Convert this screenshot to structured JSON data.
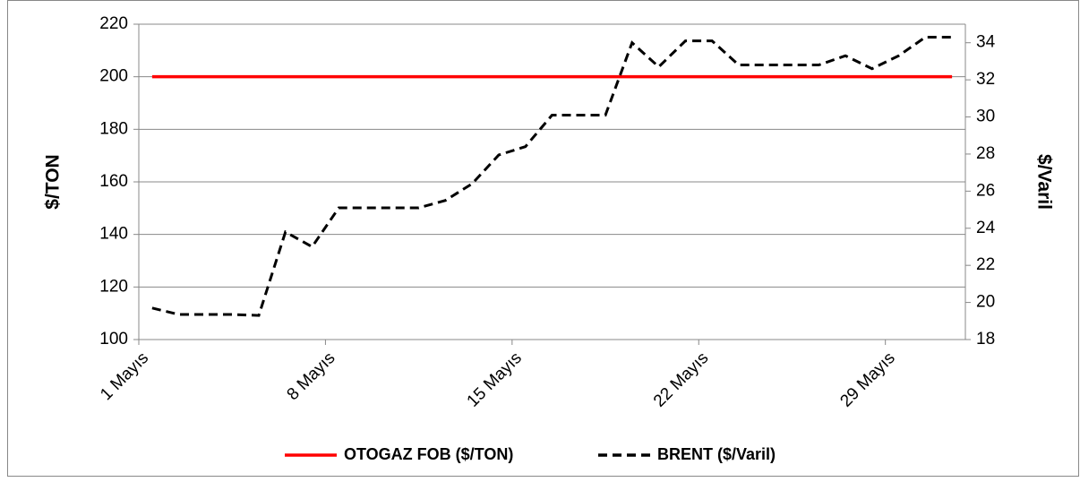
{
  "chart_data": {
    "type": "line",
    "categories": [
      "1 Mayıs",
      null,
      null,
      null,
      null,
      null,
      null,
      "8 Mayıs",
      null,
      null,
      null,
      null,
      null,
      null,
      "15 Mayıs",
      null,
      null,
      null,
      null,
      null,
      null,
      "22 Mayıs",
      null,
      null,
      null,
      null,
      null,
      null,
      "29 Mayıs",
      null,
      null
    ],
    "series": [
      {
        "name": "OTOGAZ FOB ($/TON)",
        "color": "#ff0000",
        "dash": false,
        "values": [
          200,
          200,
          200,
          200,
          200,
          200,
          200,
          200,
          200,
          200,
          200,
          200,
          200,
          200,
          200,
          200,
          200,
          200,
          200,
          200,
          200,
          200,
          200,
          200,
          200,
          200,
          200,
          200,
          200,
          200,
          200
        ]
      },
      {
        "name": "BRENT ($/Varil)",
        "color": "#000000",
        "dash": true,
        "axis": "y2",
        "values": [
          19.7,
          19.35,
          19.35,
          19.35,
          19.3,
          23.8,
          23.0,
          25.1,
          25.1,
          25.1,
          25.1,
          25.5,
          26.4,
          27.95,
          28.4,
          30.1,
          30.1,
          30.1,
          34.0,
          32.7,
          34.1,
          34.1,
          32.8,
          32.8,
          32.8,
          32.8,
          33.3,
          32.6,
          33.3,
          34.3,
          34.3
        ]
      }
    ],
    "ylabel": "$/TON",
    "y2label": "$/Varil",
    "ylim": [
      100,
      220
    ],
    "yticks": [
      100,
      120,
      140,
      160,
      180,
      200,
      220
    ],
    "y2lim": [
      18,
      35
    ],
    "y2ticks": [
      18,
      20,
      22,
      24,
      26,
      28,
      30,
      32,
      34
    ],
    "grid": true,
    "legend": "bottom"
  }
}
